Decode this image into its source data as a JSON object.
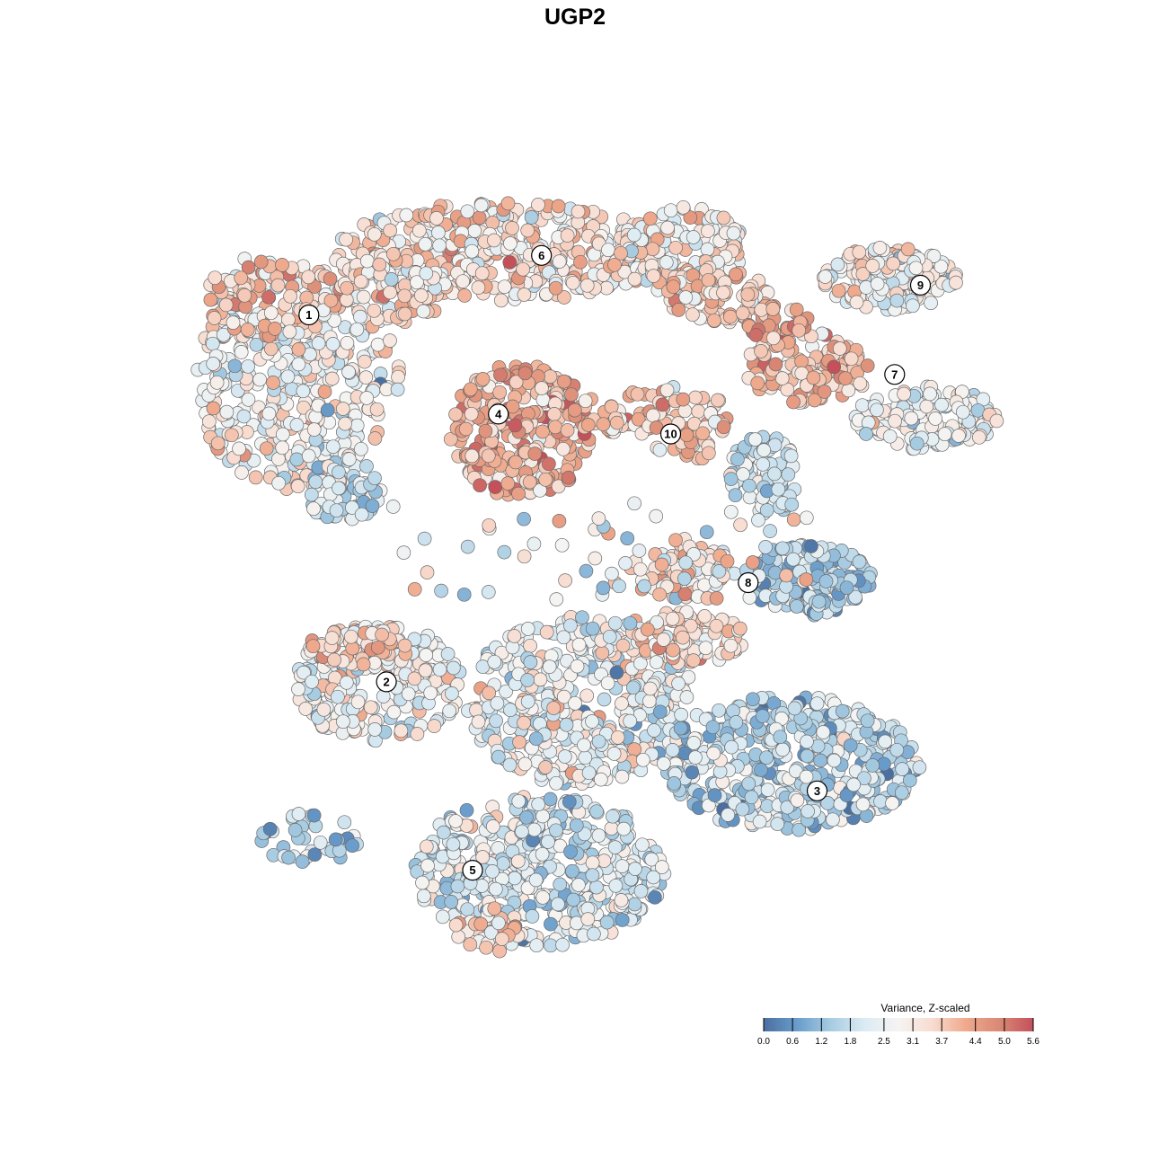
{
  "chart_data": {
    "type": "scatter",
    "title": "UGP2",
    "legend": {
      "title": "Variance, Z-scaled",
      "placement": "bottom-right",
      "ticks": [
        "0.0",
        "0.6",
        "1.2",
        "1.8",
        "2.5",
        "3.1",
        "3.7",
        "4.4",
        "5.0",
        "5.6"
      ],
      "range": [
        0.0,
        5.6
      ],
      "colors": [
        "#4a6fa0",
        "#6a9dcc",
        "#a7cce2",
        "#dcebf3",
        "#f5f4f2",
        "#f8dcd0",
        "#efa98c",
        "#d98975",
        "#c4505a"
      ]
    },
    "clusters": [
      {
        "label": "1",
        "x": 2.0,
        "y": 7.4,
        "mean": 2.8
      },
      {
        "label": "2",
        "x": 2.9,
        "y": 3.7,
        "mean": 2.7
      },
      {
        "label": "3",
        "x": 7.9,
        "y": 2.6,
        "mean": 1.7
      },
      {
        "label": "4",
        "x": 4.2,
        "y": 6.4,
        "mean": 4.2
      },
      {
        "label": "5",
        "x": 3.9,
        "y": 1.8,
        "mean": 2.1
      },
      {
        "label": "6",
        "x": 4.7,
        "y": 8.0,
        "mean": 3.0
      },
      {
        "label": "7",
        "x": 8.8,
        "y": 6.8,
        "mean": 3.0
      },
      {
        "label": "8",
        "x": 7.1,
        "y": 4.7,
        "mean": 1.5
      },
      {
        "label": "9",
        "x": 9.1,
        "y": 7.7,
        "mean": 2.9
      },
      {
        "label": "10",
        "x": 6.2,
        "y": 6.2,
        "mean": 3.6
      }
    ]
  }
}
